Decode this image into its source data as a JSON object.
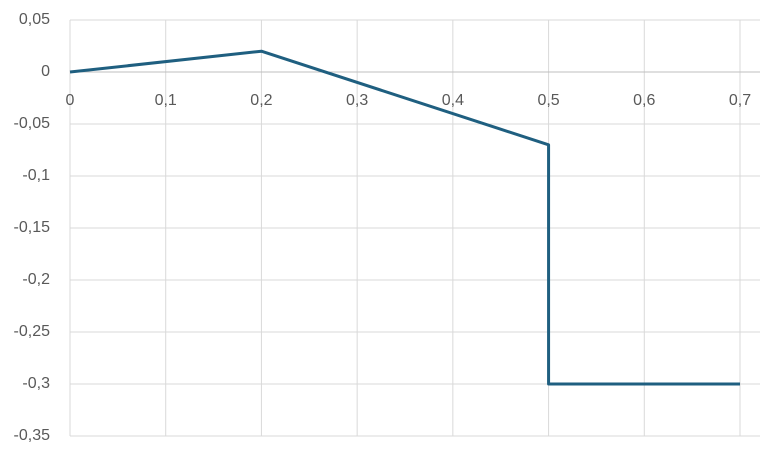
{
  "chart_data": {
    "type": "line",
    "x": [
      0,
      0.2,
      0.5,
      0.5,
      0.7
    ],
    "series": [
      {
        "color": "#1f5f80",
        "values": [
          0,
          0.02,
          -0.07,
          -0.3,
          -0.3
        ]
      }
    ],
    "xlim": [
      0,
      0.7
    ],
    "xticks": [
      0,
      {
        "value": 0.1,
        "label": "0,1"
      },
      {
        "value": 0.2,
        "label": "0,2"
      },
      {
        "value": 0.3,
        "label": "0,3"
      },
      {
        "value": 0.4,
        "label": "0,4"
      },
      {
        "value": 0.5,
        "label": "0,5"
      },
      {
        "value": 0.6,
        "label": "0,6"
      },
      {
        "value": 0.7,
        "label": "0,7"
      }
    ],
    "ylim": [
      -0.35,
      0.05
    ],
    "yticks": [
      {
        "value": 0.05,
        "label": "0,05"
      },
      0,
      {
        "value": -0.05,
        "label": "-0,05"
      },
      {
        "value": -0.1,
        "label": "-0,1"
      },
      {
        "value": -0.15,
        "label": "-0,15"
      },
      {
        "value": -0.2,
        "label": "-0,2"
      },
      {
        "value": -0.25,
        "label": "-0,25"
      },
      {
        "value": -0.3,
        "label": "-0,3"
      },
      {
        "value": -0.35,
        "label": "-0,35"
      }
    ],
    "grid": true
  }
}
